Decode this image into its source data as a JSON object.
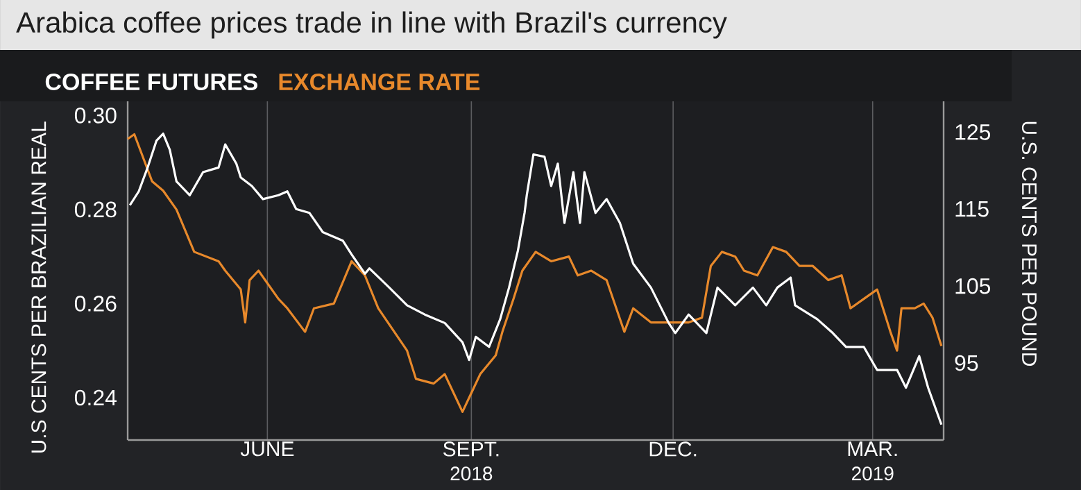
{
  "chart_data": {
    "type": "line",
    "title": "Arabica coffee prices trade in line with Brazil's currency",
    "ylabel": "U.S CENTS PER BRAZILIAN REAL",
    "y2label": "U.S. CENTS PER POUND",
    "xlim": [
      "2018-03-30",
      "2019-04-02"
    ],
    "xticks": [
      {
        "value": "2018-06-01",
        "label": "JUNE"
      },
      {
        "value": "2018-09-01",
        "label": "SEPT."
      },
      {
        "value": "2018-12-01",
        "label": "DEC."
      },
      {
        "value": "2019-03-01",
        "label": "MAR."
      }
    ],
    "ylim": [
      0.231,
      0.303
    ],
    "yticks": [
      0.24,
      0.26,
      0.28,
      {
        "value": 0.3,
        "label": "0.30"
      }
    ],
    "y2lim": [
      85,
      129
    ],
    "y2ticks": [
      95,
      105,
      115,
      125
    ],
    "grid": "x",
    "legend": "top left",
    "annotations": [
      "2018",
      "2019"
    ],
    "series": [
      {
        "name": "COFFEE FUTURES",
        "color": "#ffffff",
        "axis": "y2",
        "x": [
          "2018-03-31",
          "2018-04-04",
          "2018-04-08",
          "2018-04-12",
          "2018-04-15",
          "2018-04-18",
          "2018-04-21",
          "2018-04-27",
          "2018-05-03",
          "2018-05-10",
          "2018-05-13",
          "2018-05-18",
          "2018-05-20",
          "2018-05-25",
          "2018-05-30",
          "2018-06-06",
          "2018-06-10",
          "2018-06-14",
          "2018-06-20",
          "2018-06-26",
          "2018-07-05",
          "2018-07-09",
          "2018-07-15",
          "2018-07-17",
          "2018-07-26",
          "2018-08-03",
          "2018-08-11",
          "2018-08-20",
          "2018-08-28",
          "2018-08-31",
          "2018-09-03",
          "2018-09-09",
          "2018-09-14",
          "2018-09-18",
          "2018-09-22",
          "2018-09-25",
          "2018-09-26",
          "2018-09-29",
          "2018-10-04",
          "2018-10-07",
          "2018-10-10",
          "2018-10-13",
          "2018-10-17",
          "2018-10-20",
          "2018-10-22",
          "2018-10-27",
          "2018-11-01",
          "2018-11-07",
          "2018-11-13",
          "2018-11-21",
          "2018-11-29",
          "2018-12-02",
          "2018-12-08",
          "2018-12-16",
          "2018-12-21",
          "2018-12-29",
          "2019-01-06",
          "2019-01-12",
          "2019-01-17",
          "2019-01-23",
          "2019-01-25",
          "2019-02-04",
          "2019-02-11",
          "2019-02-17",
          "2019-02-25",
          "2019-03-03",
          "2019-03-12",
          "2019-03-16",
          "2019-03-22",
          "2019-03-26",
          "2019-04-01"
        ],
        "values": [
          115.5,
          117.3,
          120.4,
          123.9,
          124.8,
          122.7,
          118.6,
          116.8,
          119.8,
          120.4,
          123.4,
          120.9,
          119.1,
          118.0,
          116.3,
          116.8,
          117.3,
          115.0,
          114.5,
          112.0,
          110.9,
          109.1,
          106.6,
          107.3,
          104.8,
          102.5,
          101.3,
          100.2,
          97.7,
          95.4,
          98.4,
          97.1,
          100.7,
          104.8,
          109.6,
          114.5,
          116.8,
          122.1,
          121.8,
          118.0,
          120.9,
          113.2,
          119.8,
          113.2,
          119.8,
          114.5,
          116.3,
          113.2,
          107.9,
          104.8,
          100.2,
          98.9,
          101.3,
          98.9,
          104.8,
          102.5,
          104.8,
          102.5,
          104.8,
          106.1,
          102.5,
          100.7,
          98.9,
          97.1,
          97.1,
          94.1,
          94.1,
          91.8,
          95.9,
          91.8,
          87.0
        ]
      },
      {
        "name": "EXCHANGE RATE",
        "color": "#e8892b",
        "axis": "y",
        "x": [
          "2018-03-30",
          "2018-04-02",
          "2018-04-10",
          "2018-04-15",
          "2018-04-21",
          "2018-04-29",
          "2018-05-10",
          "2018-05-13",
          "2018-05-20",
          "2018-05-22",
          "2018-05-24",
          "2018-05-28",
          "2018-06-06",
          "2018-06-10",
          "2018-06-18",
          "2018-06-22",
          "2018-07-01",
          "2018-07-09",
          "2018-07-15",
          "2018-07-21",
          "2018-08-03",
          "2018-08-07",
          "2018-08-15",
          "2018-08-20",
          "2018-08-24",
          "2018-08-28",
          "2018-09-01",
          "2018-09-05",
          "2018-09-12",
          "2018-09-15",
          "2018-09-20",
          "2018-09-24",
          "2018-09-30",
          "2018-10-07",
          "2018-10-15",
          "2018-10-19",
          "2018-10-25",
          "2018-11-01",
          "2018-11-09",
          "2018-11-13",
          "2018-11-21",
          "2018-11-26",
          "2018-12-08",
          "2018-12-14",
          "2018-12-18",
          "2018-12-23",
          "2018-12-29",
          "2019-01-02",
          "2019-01-08",
          "2019-01-15",
          "2019-01-21",
          "2019-01-27",
          "2019-02-02",
          "2019-02-09",
          "2019-02-15",
          "2019-02-19",
          "2019-02-25",
          "2019-03-03",
          "2019-03-09",
          "2019-03-12",
          "2019-03-14",
          "2019-03-20",
          "2019-03-24",
          "2019-03-28",
          "2019-04-01"
        ],
        "values": [
          0.295,
          0.296,
          0.286,
          0.284,
          0.28,
          0.271,
          0.269,
          0.267,
          0.263,
          0.256,
          0.265,
          0.267,
          0.261,
          0.259,
          0.254,
          0.259,
          0.26,
          0.269,
          0.266,
          0.259,
          0.25,
          0.244,
          0.243,
          0.245,
          0.241,
          0.237,
          0.241,
          0.245,
          0.249,
          0.254,
          0.261,
          0.267,
          0.271,
          0.269,
          0.27,
          0.266,
          0.267,
          0.265,
          0.254,
          0.259,
          0.256,
          0.256,
          0.256,
          0.257,
          0.268,
          0.271,
          0.27,
          0.267,
          0.266,
          0.272,
          0.271,
          0.268,
          0.268,
          0.265,
          0.266,
          0.259,
          0.261,
          0.263,
          0.254,
          0.25,
          0.259,
          0.259,
          0.26,
          0.257,
          0.251
        ]
      }
    ]
  }
}
